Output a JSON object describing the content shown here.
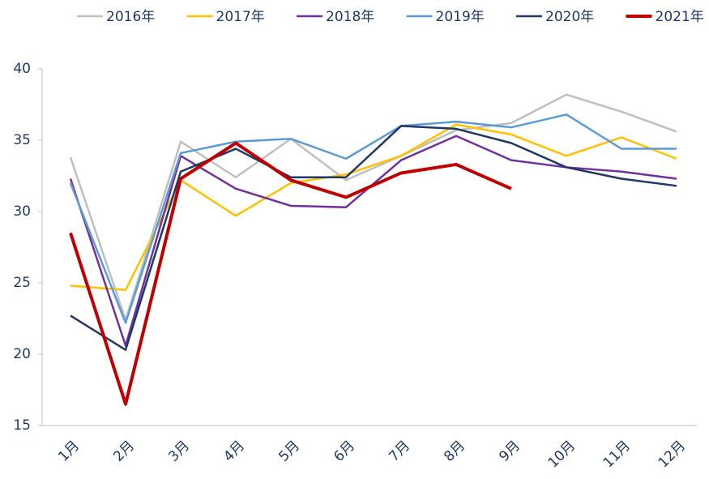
{
  "chart_data": {
    "type": "line",
    "categories": [
      "1月",
      "2月",
      "3月",
      "4月",
      "5月",
      "6月",
      "7月",
      "8月",
      "9月",
      "10月",
      "11月",
      "12月"
    ],
    "ylim": [
      15,
      40
    ],
    "yticks": [
      15,
      20,
      25,
      30,
      35,
      40
    ],
    "legend": "top",
    "series": [
      {
        "name": "2016年",
        "color": "#bfbfbf",
        "values": [
          33.8,
          22.4,
          34.9,
          32.4,
          35.1,
          32.2,
          33.9,
          35.7,
          36.2,
          38.2,
          37.0,
          35.6
        ]
      },
      {
        "name": "2017年",
        "color": "#ffc000",
        "values": [
          24.8,
          24.5,
          32.2,
          29.7,
          32.0,
          32.6,
          33.9,
          36.1,
          35.4,
          33.9,
          35.2,
          33.7
        ]
      },
      {
        "name": "2018年",
        "color": "#7030a0",
        "values": [
          32.3,
          20.6,
          33.9,
          31.6,
          30.4,
          30.3,
          33.6,
          35.3,
          33.6,
          33.1,
          32.8,
          32.3
        ]
      },
      {
        "name": "2019年",
        "color": "#5b9bd5",
        "values": [
          32.0,
          22.2,
          34.1,
          34.9,
          35.1,
          33.7,
          36.0,
          36.3,
          35.9,
          36.8,
          34.4,
          34.4
        ]
      },
      {
        "name": "2020年",
        "color": "#1f3864",
        "values": [
          22.7,
          20.3,
          32.8,
          34.4,
          32.4,
          32.4,
          36.0,
          35.8,
          34.8,
          33.1,
          32.3,
          31.8
        ]
      },
      {
        "name": "2021年",
        "color": "#c00000",
        "values": [
          28.5,
          16.5,
          32.3,
          34.8,
          32.2,
          31.0,
          32.7,
          33.3,
          31.6,
          null,
          null,
          null
        ]
      }
    ]
  }
}
